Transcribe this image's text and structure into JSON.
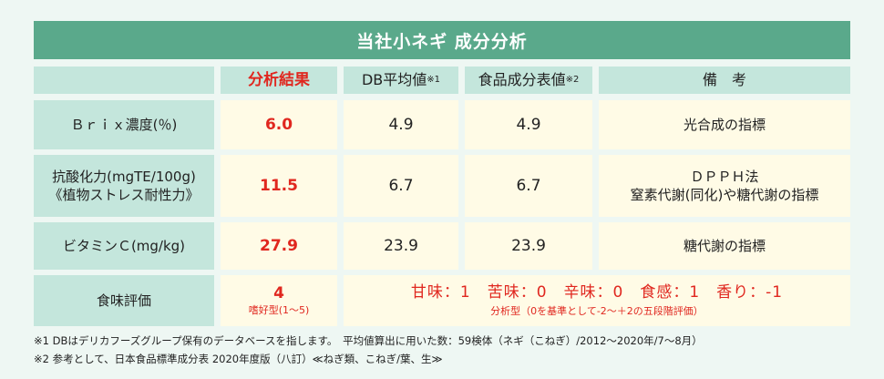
{
  "title": "当社小ネギ 成分分析",
  "headers": {
    "blank": "",
    "result": "分析結果",
    "db_avg": "DB平均値",
    "db_avg_mark": "※1",
    "food_table": "食品成分表値",
    "food_table_mark": "※2",
    "remarks": "備　考"
  },
  "rows": [
    {
      "label_line1": "Ｂｒｉｘ濃度(％)",
      "label_line2": "",
      "result": "6.0",
      "db_avg": "4.9",
      "food_table": "4.9",
      "remark_line1": "光合成の指標",
      "remark_line2": ""
    },
    {
      "label_line1": "抗酸化力(mgTE/100g)",
      "label_line2": "《植物ストレス耐性力》",
      "result": "11.5",
      "db_avg": "6.7",
      "food_table": "6.7",
      "remark_line1": "ＤＰＰＨ法",
      "remark_line2": "窒素代謝(同化)や糖代謝の指標"
    },
    {
      "label_line1": "ビタミンＣ(mg/kg)",
      "label_line2": "",
      "result": "27.9",
      "db_avg": "23.9",
      "food_table": "23.9",
      "remark_line1": "糖代謝の指標",
      "remark_line2": ""
    }
  ],
  "taste": {
    "label": "食味評価",
    "result": "4",
    "result_sub": "嗜好型(1～5)",
    "scores": "甘味：1　苦味：0　辛味：0　食感：1　香り：-1",
    "scores_sub": "分析型（0を基準として-2～＋2の五段階評価）"
  },
  "notes": [
    "※1 DBはデリカフーズグループ保有のデータベースを指します。　平均値算出に用いた数：59検体（ネギ（こねぎ）/2012～2020年/7～8月）",
    "※2 参考として、日本食品標準成分表 2020年度版（八訂）≪ねぎ類、こねぎ/葉、生≫"
  ],
  "colors": {
    "accent": "#5aa98b",
    "header_bg": "#c4e6dc",
    "value_bg": "#fffbe6",
    "highlight": "#e0271f"
  }
}
